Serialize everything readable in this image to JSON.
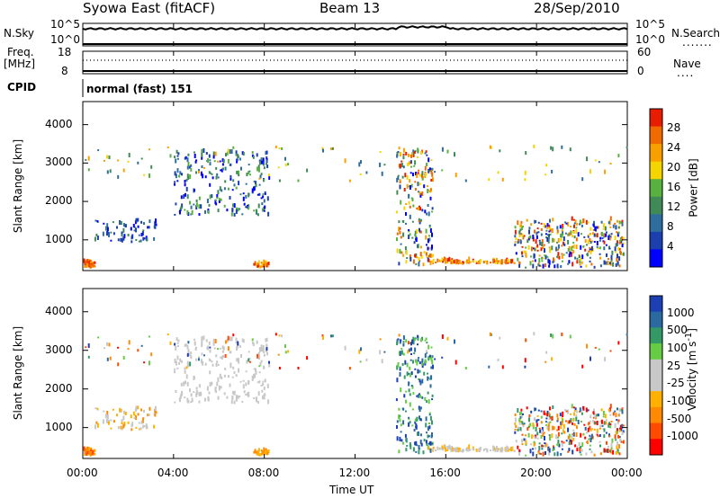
{
  "header": {
    "station": "Syowa East (fitACF)",
    "beam": "Beam 13",
    "date": "28/Sep/2010"
  },
  "top_panels": {
    "nsky_label": "N.Sky",
    "nsky_hi": "10^5",
    "nsky_lo": "10^0",
    "nsearch_label": "N.Search",
    "nsearch_hi": "10^5",
    "nsearch_lo": "10^0",
    "freq_label": "Freq.",
    "freq_unit": "[MHz]",
    "freq_hi": "18",
    "freq_lo": "8",
    "nave_label": "Nave",
    "nave_hi": "60",
    "nave_lo": "0",
    "cpid_label": "CPID",
    "cpid_text": "normal (fast) 151"
  },
  "colors": {
    "power_scale": [
      "#0000ff",
      "#1c3fb0",
      "#2e6d9e",
      "#3f8a57",
      "#58b040",
      "#f5d500",
      "#f9a000",
      "#f06a00",
      "#e81c00"
    ],
    "velocity_scale": [
      "#ff0000",
      "#ff4a00",
      "#ff8a00",
      "#ffb000",
      "#c8c8c8",
      "#c8c8c8",
      "#66cc44",
      "#339966",
      "#2a6aa0",
      "#1c40b4"
    ]
  },
  "chart_data": [
    {
      "type": "heatmap",
      "name": "power",
      "ylabel": "Slant Range [km]",
      "ylim": [
        200,
        4600
      ],
      "yticks": [
        "1000",
        "2000",
        "3000",
        "4000"
      ],
      "ytick_values": [
        1000,
        2000,
        3000,
        4000
      ],
      "xlim": [
        0,
        24
      ],
      "colorbar_label": "Power [dB]",
      "colorbar_ticks": [
        "4",
        "8",
        "12",
        "16",
        "20",
        "24",
        "28"
      ]
    },
    {
      "type": "heatmap",
      "name": "velocity",
      "ylabel": "Slant Range [km]",
      "ylim": [
        200,
        4600
      ],
      "yticks": [
        "1000",
        "2000",
        "3000",
        "4000"
      ],
      "ytick_values": [
        1000,
        2000,
        3000,
        4000
      ],
      "xlim": [
        0,
        24
      ],
      "xlabel": "Time UT",
      "xticks": [
        "00:00",
        "04:00",
        "08:00",
        "12:00",
        "16:00",
        "20:00",
        "00:00"
      ],
      "xtick_values": [
        0,
        4,
        8,
        12,
        16,
        20,
        24
      ],
      "colorbar_label": "Velocity [m s^-1]",
      "colorbar_ticks": [
        "1000",
        "500",
        "100",
        "25",
        "-25",
        "-100",
        "-500",
        "-1000"
      ]
    }
  ]
}
